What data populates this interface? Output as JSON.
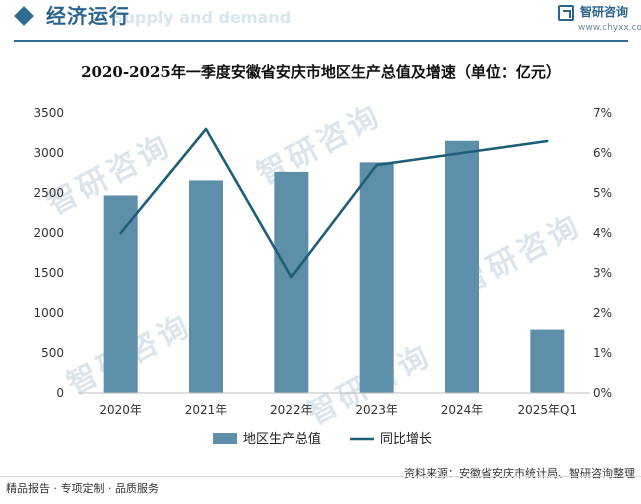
{
  "header": {
    "section_title": "经济运行",
    "ghost_text": "Supply and demand",
    "brand_name": "智研咨询",
    "brand_url": "www.chyxx.com"
  },
  "watermark": {
    "text": "智研咨询"
  },
  "chart_data": {
    "type": "bar+line",
    "title": "2020-2025年一季度安徽省安庆市地区生产总值及增速（单位：亿元）",
    "categories": [
      "2020年",
      "2021年",
      "2022年",
      "2023年",
      "2024年",
      "2025年Q1"
    ],
    "series": [
      {
        "name": "地区生产总值",
        "type": "bar",
        "axis": "left",
        "color": "#5d8fa8",
        "values": [
          2469,
          2657,
          2764,
          2883,
          3153,
          793
        ]
      },
      {
        "name": "同比增长",
        "type": "line",
        "axis": "right",
        "color": "#1f5e78",
        "values": [
          4.0,
          6.6,
          2.9,
          5.7,
          6.0,
          6.3
        ]
      }
    ],
    "y_left": {
      "min": 0,
      "max": 3500,
      "ticks": [
        0,
        500,
        1000,
        1500,
        2000,
        2500,
        3000,
        3500
      ]
    },
    "y_right": {
      "min": 0,
      "max": 7,
      "ticks": [
        "0%",
        "1%",
        "2%",
        "3%",
        "4%",
        "5%",
        "6%",
        "7%"
      ]
    },
    "legend_position": "bottom-center",
    "grid": false
  },
  "footer": {
    "left": "精品报告 · 专项定制 · 品质服务",
    "right": "资料来源：安徽省安庆市统计局、智研咨询整理"
  }
}
